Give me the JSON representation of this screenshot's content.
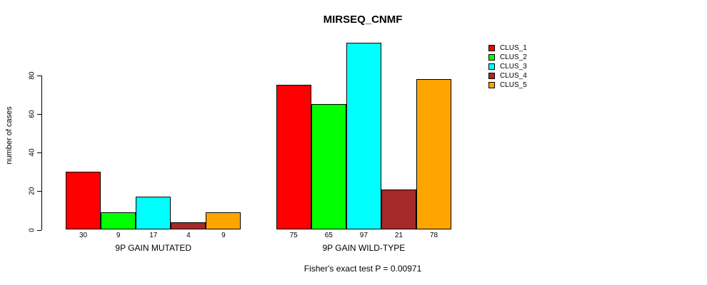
{
  "title": "MIRSEQ_CNMF",
  "y_axis": {
    "label": "number of cases",
    "ticks": [
      0,
      20,
      40,
      60,
      80
    ]
  },
  "legend": {
    "items": [
      {
        "label": "CLUS_1",
        "color": "#FF0000"
      },
      {
        "label": "CLUS_2",
        "color": "#00FF00"
      },
      {
        "label": "CLUS_3",
        "color": "#00FFFF"
      },
      {
        "label": "CLUS_4",
        "color": "#A52A2A"
      },
      {
        "label": "CLUS_5",
        "color": "#FFA500"
      }
    ]
  },
  "footer": "Fisher's exact test P = 0.00971",
  "chart_data": {
    "type": "bar",
    "title": "MIRSEQ_CNMF",
    "xlabel": "",
    "ylabel": "number of cases",
    "ylim": [
      0,
      100
    ],
    "yticks": [
      0,
      20,
      40,
      60,
      80
    ],
    "grid": false,
    "legend_position": "right-outside",
    "bar_value_labels": true,
    "categories": [
      "9P GAIN MUTATED",
      "9P GAIN WILD-TYPE"
    ],
    "series": [
      {
        "name": "CLUS_1",
        "color": "#FF0000",
        "values": [
          30,
          75
        ]
      },
      {
        "name": "CLUS_2",
        "color": "#00FF00",
        "values": [
          9,
          65
        ]
      },
      {
        "name": "CLUS_3",
        "color": "#00FFFF",
        "values": [
          17,
          97
        ]
      },
      {
        "name": "CLUS_4",
        "color": "#A52A2A",
        "values": [
          4,
          21
        ]
      },
      {
        "name": "CLUS_5",
        "color": "#FFA500",
        "values": [
          9,
          78
        ]
      }
    ],
    "annotation": "Fisher's exact test P = 0.00971"
  }
}
